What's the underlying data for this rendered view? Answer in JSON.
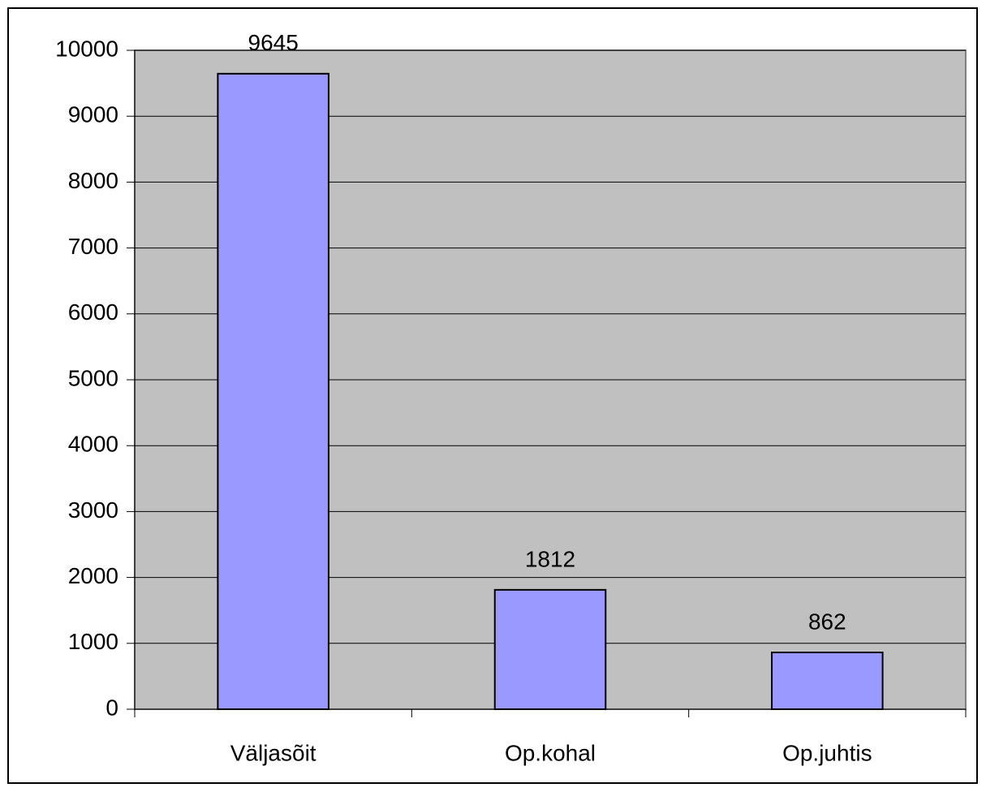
{
  "chart_data": {
    "type": "bar",
    "categories": [
      "Väljasõit",
      "Op.kohal",
      "Op.juhtis"
    ],
    "values": [
      9645,
      1812,
      862
    ],
    "color": "#9999ff",
    "ylim": [
      0,
      10000
    ],
    "yticks": [
      0,
      1000,
      2000,
      3000,
      4000,
      5000,
      6000,
      7000,
      8000,
      9000,
      10000
    ],
    "grid": true
  }
}
